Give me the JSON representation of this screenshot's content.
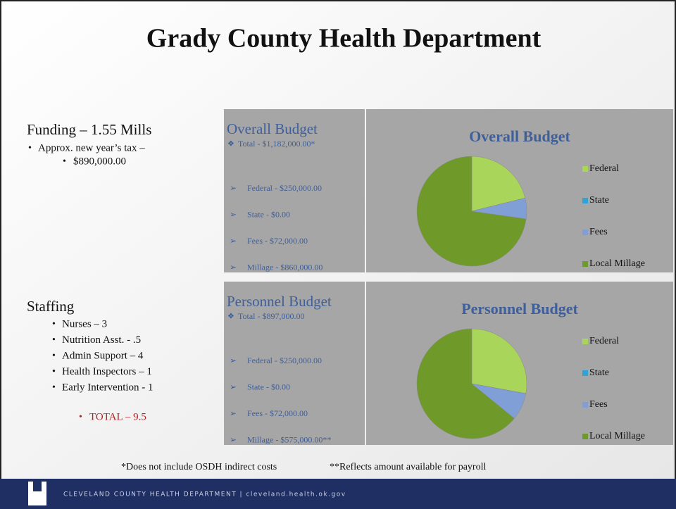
{
  "header": {
    "title": "Grady County Health Department"
  },
  "funding": {
    "heading": "Funding – 1.55 Mills",
    "items": [
      "Approx. new year’s tax –"
    ],
    "subitems": [
      "$890,000.00"
    ]
  },
  "staffing": {
    "heading": "Staffing",
    "items": [
      "Nurses – 3",
      "Nutrition Asst. - .5",
      "Admin Support – 4",
      "Health Inspectors – 1",
      "Early Intervention - 1"
    ],
    "total": "TOTAL – 9.5"
  },
  "budgets": [
    {
      "heading": "Overall Budget",
      "total": "Total  - $1,182,000.00*",
      "items": [
        "Federal - $250,000.00",
        "State - $0.00",
        "Fees - $72,000.00",
        "Millage - $860,000.00"
      ],
      "chart": {
        "type": "pie",
        "title": "Overall Budget",
        "categories": [
          "Federal",
          "State",
          "Fees",
          "Local Millage"
        ],
        "values": [
          250000,
          0,
          72000,
          860000
        ],
        "colors": [
          "#a9d55a",
          "#2ea3d8",
          "#7f9fd6",
          "#6f9a2a"
        ]
      }
    },
    {
      "heading": "Personnel Budget",
      "total": "Total  - $897,000.00",
      "items": [
        "Federal - $250,000.00",
        "State - $0.00",
        "Fees - $72,000.00",
        "Millage - $575,000.00**"
      ],
      "chart": {
        "type": "pie",
        "title": "Personnel Budget",
        "categories": [
          "Federal",
          "State",
          "Fees",
          "Local Millage"
        ],
        "values": [
          250000,
          0,
          72000,
          575000
        ],
        "colors": [
          "#a9d55a",
          "#2ea3d8",
          "#7f9fd6",
          "#6f9a2a"
        ]
      }
    }
  ],
  "notes": [
    "*Does not include OSDH indirect costs",
    "**Reflects amount available for payroll"
  ],
  "footer": {
    "text": "CLEVELAND COUNTY HEALTH DEPARTMENT  |  cleveland.health.ok.gov"
  }
}
